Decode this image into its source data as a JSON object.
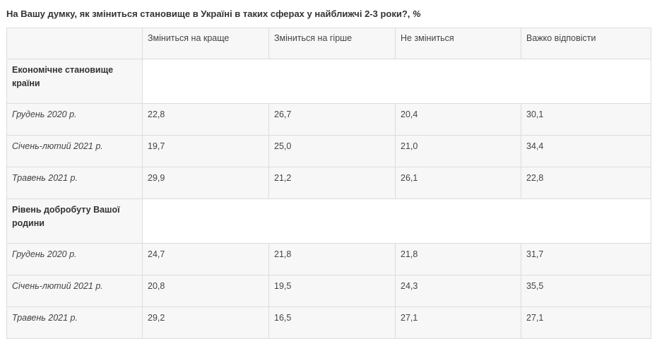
{
  "title": {
    "text": "На Вашу думку, як зміниться становище в Україні в таких сферах у найближчі 2-3 роки?,",
    "unit": "%"
  },
  "table": {
    "headers": [
      "",
      "Зміниться на краще",
      "Зміниться на гірше",
      "Не зміниться",
      "Важко відповісти"
    ],
    "sections": [
      {
        "label": "Економічне становище країни",
        "rows": [
          {
            "period": "Грудень 2020 р.",
            "values": [
              "22,8",
              "26,7",
              "20,4",
              "30,1"
            ]
          },
          {
            "period": "Січень-лютий 2021 р.",
            "values": [
              "19,7",
              "25,0",
              "21,0",
              "34,4"
            ]
          },
          {
            "period": "Травень 2021 р.",
            "values": [
              "29,9",
              "21,2",
              "26,1",
              "22,8"
            ]
          }
        ]
      },
      {
        "label": "Рівень добробуту Вашої родини",
        "rows": [
          {
            "period": "Грудень 2020 р.",
            "values": [
              "24,7",
              "21,8",
              "21,8",
              "31,7"
            ]
          },
          {
            "period": "Січень-лютий 2021 р.",
            "values": [
              "20,8",
              "19,5",
              "24,3",
              "35,5"
            ]
          },
          {
            "period": "Травень 2021 р.",
            "values": [
              "29,2",
              "16,5",
              "27,1",
              "27,1"
            ]
          }
        ]
      }
    ]
  }
}
